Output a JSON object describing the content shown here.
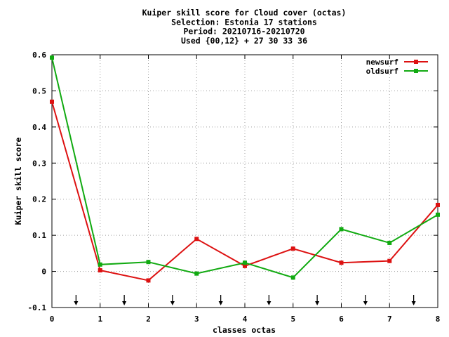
{
  "chart_data": {
    "type": "line",
    "title_lines": [
      "Kuiper skill score  for Cloud cover (octas)",
      "Selection: Estonia     17 stations",
      "Period: 20210716-20210720",
      "Used {00,12} + 27 30 33 36"
    ],
    "xlabel": "classes octas",
    "ylabel": "Kuiper skill score",
    "xlim": [
      0,
      8
    ],
    "ylim": [
      -0.1,
      0.6
    ],
    "xticks": [
      "0",
      "1",
      "2",
      "3",
      "4",
      "5",
      "6",
      "7",
      "8"
    ],
    "yticks": [
      "-0.1",
      "0",
      "0.1",
      "0.2",
      "0.3",
      "0.4",
      "0.5",
      "0.6"
    ],
    "grid": true,
    "legend_position": "top-right",
    "arrows_x": [
      0.5,
      1.5,
      2.5,
      3.5,
      4.5,
      5.5,
      6.5,
      7.5
    ],
    "series": [
      {
        "name": "newsurf",
        "color": "#dd1111",
        "x": [
          0,
          1,
          2,
          3,
          4,
          5,
          6,
          7,
          8
        ],
        "values": [
          0.47,
          0.003,
          -0.025,
          0.09,
          0.015,
          0.063,
          0.024,
          0.029,
          0.184
        ]
      },
      {
        "name": "oldsurf",
        "color": "#11aa11",
        "x": [
          0,
          1,
          2,
          3,
          4,
          5,
          6,
          7,
          8
        ],
        "values": [
          0.592,
          0.019,
          0.026,
          -0.006,
          0.024,
          -0.017,
          0.117,
          0.079,
          0.157
        ]
      }
    ]
  }
}
